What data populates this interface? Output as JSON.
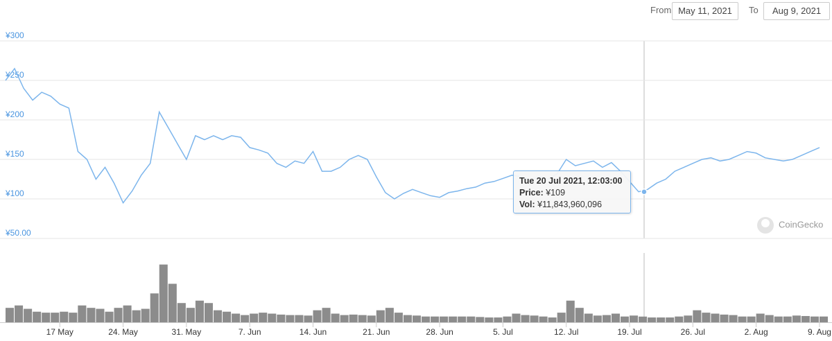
{
  "controls": {
    "from_label": "From",
    "from_value": "May 11, 2021",
    "to_label": "To",
    "to_value": "Aug 9, 2021"
  },
  "watermark": "CoinGecko",
  "chart_data": {
    "type": "line",
    "x": [
      "2021-05-11",
      "2021-05-12",
      "2021-05-13",
      "2021-05-14",
      "2021-05-15",
      "2021-05-16",
      "2021-05-17",
      "2021-05-18",
      "2021-05-19",
      "2021-05-20",
      "2021-05-21",
      "2021-05-22",
      "2021-05-23",
      "2021-05-24",
      "2021-05-25",
      "2021-05-26",
      "2021-05-27",
      "2021-05-28",
      "2021-05-29",
      "2021-05-30",
      "2021-05-31",
      "2021-06-01",
      "2021-06-02",
      "2021-06-03",
      "2021-06-04",
      "2021-06-05",
      "2021-06-06",
      "2021-06-07",
      "2021-06-08",
      "2021-06-09",
      "2021-06-10",
      "2021-06-11",
      "2021-06-12",
      "2021-06-13",
      "2021-06-14",
      "2021-06-15",
      "2021-06-16",
      "2021-06-17",
      "2021-06-18",
      "2021-06-19",
      "2021-06-20",
      "2021-06-21",
      "2021-06-22",
      "2021-06-23",
      "2021-06-24",
      "2021-06-25",
      "2021-06-26",
      "2021-06-27",
      "2021-06-28",
      "2021-06-29",
      "2021-06-30",
      "2021-07-01",
      "2021-07-02",
      "2021-07-03",
      "2021-07-04",
      "2021-07-05",
      "2021-07-06",
      "2021-07-07",
      "2021-07-08",
      "2021-07-09",
      "2021-07-10",
      "2021-07-11",
      "2021-07-12",
      "2021-07-13",
      "2021-07-14",
      "2021-07-15",
      "2021-07-16",
      "2021-07-17",
      "2021-07-18",
      "2021-07-19",
      "2021-07-20",
      "2021-07-21",
      "2021-07-22",
      "2021-07-23",
      "2021-07-24",
      "2021-07-25",
      "2021-07-26",
      "2021-07-27",
      "2021-07-28",
      "2021-07-29",
      "2021-07-30",
      "2021-07-31",
      "2021-08-01",
      "2021-08-02",
      "2021-08-03",
      "2021-08-04",
      "2021-08-05",
      "2021-08-06",
      "2021-08-07",
      "2021-08-08",
      "2021-08-09"
    ],
    "series": [
      {
        "name": "Price",
        "color": "#7cb5ec",
        "values": [
          250,
          265,
          240,
          225,
          235,
          230,
          220,
          215,
          160,
          150,
          125,
          140,
          120,
          95,
          110,
          130,
          145,
          210,
          190,
          170,
          150,
          180,
          175,
          180,
          175,
          180,
          178,
          165,
          162,
          158,
          145,
          140,
          148,
          145,
          160,
          135,
          135,
          140,
          150,
          155,
          150,
          128,
          108,
          100,
          107,
          112,
          108,
          104,
          102,
          108,
          110,
          113,
          115,
          120,
          122,
          126,
          130,
          128,
          124,
          128,
          125,
          132,
          150,
          142,
          145,
          148,
          140,
          146,
          135,
          122,
          109,
          112,
          120,
          125,
          135,
          140,
          145,
          150,
          152,
          148,
          150,
          155,
          160,
          158,
          152,
          150,
          148,
          150,
          155,
          160,
          165
        ]
      },
      {
        "name": "Volume",
        "color": "#8c8c8c",
        "axis": "y2",
        "values": [
          30000000000,
          35000000000,
          28000000000,
          22000000000,
          20000000000,
          20000000000,
          22000000000,
          20000000000,
          35000000000,
          30000000000,
          28000000000,
          22000000000,
          30000000000,
          35000000000,
          25000000000,
          28000000000,
          60000000000,
          120000000000,
          80000000000,
          40000000000,
          30000000000,
          45000000000,
          40000000000,
          25000000000,
          22000000000,
          18000000000,
          15000000000,
          18000000000,
          20000000000,
          18000000000,
          16000000000,
          15000000000,
          15000000000,
          14000000000,
          25000000000,
          30000000000,
          18000000000,
          15000000000,
          16000000000,
          15000000000,
          14000000000,
          25000000000,
          30000000000,
          20000000000,
          15000000000,
          14000000000,
          12000000000,
          12000000000,
          12000000000,
          12000000000,
          12000000000,
          12000000000,
          11000000000,
          10000000000,
          10000000000,
          12000000000,
          18000000000,
          15000000000,
          14000000000,
          12000000000,
          10000000000,
          20000000000,
          45000000000,
          30000000000,
          18000000000,
          14000000000,
          15000000000,
          18000000000,
          12000000000,
          14000000000,
          11843960096,
          10000000000,
          10000000000,
          10000000000,
          12000000000,
          14000000000,
          25000000000,
          20000000000,
          18000000000,
          16000000000,
          15000000000,
          12000000000,
          12000000000,
          18000000000,
          15000000000,
          12000000000,
          12000000000,
          14000000000,
          13000000000,
          12000000000,
          12000000000
        ]
      }
    ],
    "xlim": [
      "2021-05-11",
      "2021-08-10"
    ],
    "xticks": [
      {
        "value": "2021-05-17",
        "label": "17 May"
      },
      {
        "value": "2021-05-24",
        "label": "24. May"
      },
      {
        "value": "2021-05-31",
        "label": "31. May"
      },
      {
        "value": "2021-06-07",
        "label": "7. Jun"
      },
      {
        "value": "2021-06-14",
        "label": "14. Jun"
      },
      {
        "value": "2021-06-21",
        "label": "21. Jun"
      },
      {
        "value": "2021-06-28",
        "label": "28. Jun"
      },
      {
        "value": "2021-07-05",
        "label": "5. Jul"
      },
      {
        "value": "2021-07-12",
        "label": "12. Jul"
      },
      {
        "value": "2021-07-19",
        "label": "19. Jul"
      },
      {
        "value": "2021-07-26",
        "label": "26. Jul"
      },
      {
        "value": "2021-08-02",
        "label": "2. Aug"
      },
      {
        "value": "2021-08-09",
        "label": "9. Aug"
      }
    ],
    "ylim": [
      50,
      300
    ],
    "yticks": [
      {
        "value": 50,
        "label": "¥50.00"
      },
      {
        "value": 100,
        "label": "¥100"
      },
      {
        "value": 150,
        "label": "¥150"
      },
      {
        "value": 200,
        "label": "¥200"
      },
      {
        "value": 250,
        "label": "¥250"
      },
      {
        "value": 300,
        "label": "¥300"
      }
    ],
    "grid": true,
    "tooltip": {
      "title": "Tue 20 Jul 2021, 12:03:00",
      "price_label": "Price:",
      "price": {
        "value": 109,
        "label": "¥109"
      },
      "vol_label": "Vol:",
      "vol": {
        "value": 11843960096,
        "label": "¥11,843,960,096"
      }
    }
  }
}
